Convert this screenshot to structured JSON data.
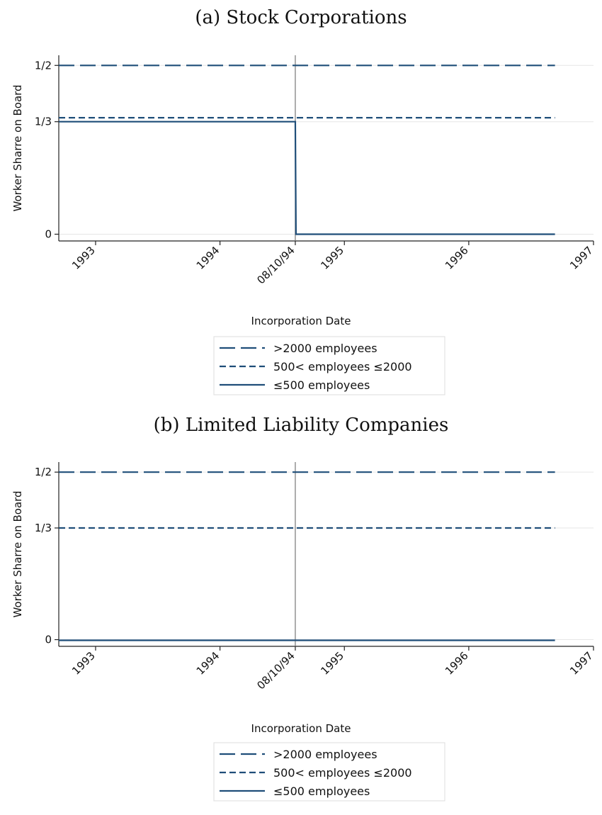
{
  "chart_data": [
    {
      "type": "line",
      "title": "(a) Stock Corporations",
      "xlabel": "Incorporation Date",
      "ylabel": "Worker Sharre on Board",
      "x_tick_labels": [
        "1993",
        "1994",
        "08/10/94",
        "1995",
        "1996",
        "1997"
      ],
      "x_ticks": [
        "1993-01-01",
        "1994-01-01",
        "1994-08-10",
        "1995-01-01",
        "1996-01-01",
        "1997-01-01"
      ],
      "y_tick_labels": [
        "0",
        "1/3",
        "1/2"
      ],
      "y_ticks": [
        0,
        0.3333,
        0.5
      ],
      "xlim": [
        "1992-09-15",
        "1997-01-01"
      ],
      "ylim": [
        -0.02,
        0.53
      ],
      "reference_line": "1994-08-10",
      "grid": "horizontal",
      "legend_position": "below",
      "series": [
        {
          "name": ">2000 employees",
          "style": "long-dash",
          "points": [
            [
              "1992-09-15",
              0.5
            ],
            [
              "1996-09-10",
              0.5
            ]
          ]
        },
        {
          "name": "500< employees ≤2000",
          "style": "short-dash",
          "points": [
            [
              "1992-09-15",
              0.345
            ],
            [
              "1996-09-10",
              0.345
            ]
          ]
        },
        {
          "name": "≤500 employees",
          "style": "solid",
          "points": [
            [
              "1992-09-15",
              0.3333
            ],
            [
              "1994-08-10",
              0.3333
            ],
            [
              "1994-08-12",
              0
            ],
            [
              "1996-09-10",
              0
            ]
          ]
        }
      ]
    },
    {
      "type": "line",
      "title": "(b) Limited Liability Companies",
      "xlabel": "Incorporation Date",
      "ylabel": "Worker Sharre on Board",
      "x_tick_labels": [
        "1993",
        "1994",
        "08/10/94",
        "1995",
        "1996",
        "1997"
      ],
      "x_ticks": [
        "1993-01-01",
        "1994-01-01",
        "1994-08-10",
        "1995-01-01",
        "1996-01-01",
        "1997-01-01"
      ],
      "y_tick_labels": [
        "0",
        "1/3",
        "1/2"
      ],
      "y_ticks": [
        0,
        0.3333,
        0.5
      ],
      "xlim": [
        "1992-09-15",
        "1997-01-01"
      ],
      "ylim": [
        -0.02,
        0.53
      ],
      "reference_line": "1994-08-10",
      "grid": "horizontal",
      "legend_position": "below",
      "series": [
        {
          "name": ">2000 employees",
          "style": "long-dash",
          "points": [
            [
              "1992-09-15",
              0.5
            ],
            [
              "1996-09-10",
              0.5
            ]
          ]
        },
        {
          "name": "500< employees ≤2000",
          "style": "short-dash",
          "points": [
            [
              "1992-09-15",
              0.3333
            ],
            [
              "1996-09-10",
              0.3333
            ]
          ]
        },
        {
          "name": "≤500 employees",
          "style": "solid",
          "points": [
            [
              "1992-09-15",
              -0.002
            ],
            [
              "1996-09-10",
              -0.002
            ]
          ]
        }
      ]
    }
  ],
  "colors": {
    "series": "#1f4e79",
    "grid": "#e6e6e6",
    "axis": "#222222",
    "reference_line": "#777777",
    "legend_border": "#dddddd"
  }
}
